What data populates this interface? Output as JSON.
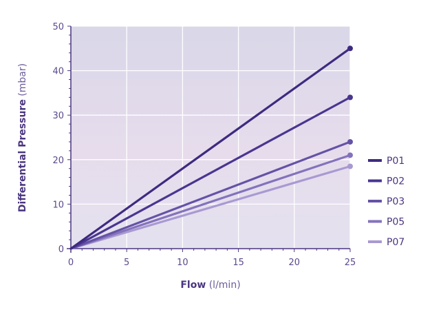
{
  "chart_data": {
    "type": "line",
    "xlabel": "Flow",
    "xlabel_unit": "(l/min)",
    "ylabel": "Differential Pressure",
    "ylabel_unit": "(mbar)",
    "xlim": [
      0,
      25
    ],
    "ylim": [
      0,
      50
    ],
    "x_ticks": [
      0,
      5,
      10,
      15,
      20,
      25
    ],
    "y_ticks": [
      0,
      10,
      20,
      30,
      40,
      50
    ],
    "grid": true,
    "legend_position": "right",
    "x": [
      0,
      25
    ],
    "series": [
      {
        "name": "P01",
        "values": [
          0,
          45
        ],
        "color": "#3e2a80"
      },
      {
        "name": "P02",
        "values": [
          0,
          34
        ],
        "color": "#4a3590"
      },
      {
        "name": "P03",
        "values": [
          0,
          24
        ],
        "color": "#6552a6"
      },
      {
        "name": "P05",
        "values": [
          0,
          21
        ],
        "color": "#8472bc"
      },
      {
        "name": "P07",
        "values": [
          0,
          18.5
        ],
        "color": "#a999d2"
      }
    ]
  }
}
